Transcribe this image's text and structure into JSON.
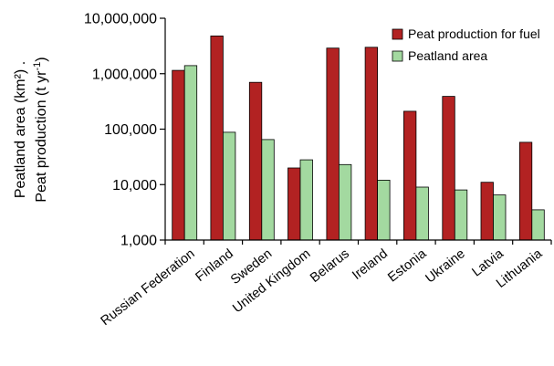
{
  "chart_data": {
    "type": "bar",
    "scale": "log",
    "ylim": [
      1000,
      10000000
    ],
    "yticks": [
      {
        "value": 1000,
        "label": "1,000"
      },
      {
        "value": 10000,
        "label": "10,000"
      },
      {
        "value": 100000,
        "label": "100,000"
      },
      {
        "value": 1000000,
        "label": "1,000,000"
      },
      {
        "value": 10000000,
        "label": "10,000,000"
      }
    ],
    "ylabel": {
      "line1": "Peatland area (km²)  .",
      "line2_prefix": "Peat production (t yr",
      "line2_sup": "-1",
      "line2_suffix": ")"
    },
    "categories": [
      "Russian Federation",
      "Finland",
      "Sweden",
      "United Kingdom",
      "Belarus",
      "Ireland",
      "Estonia",
      "Ukraine",
      "Latvia",
      "Lithuania"
    ],
    "series": [
      {
        "name": "Peat production for fuel",
        "color": "#b22222",
        "values": [
          1150000,
          4800000,
          700000,
          20000,
          2900000,
          3000000,
          210000,
          390000,
          11000,
          58000
        ]
      },
      {
        "name": "Peatland area",
        "color": "#a3d9a0",
        "values": [
          1400000,
          88000,
          65000,
          28000,
          23000,
          12000,
          9000,
          8000,
          6500,
          3500
        ]
      }
    ],
    "legend": "top-right",
    "grid": false
  }
}
